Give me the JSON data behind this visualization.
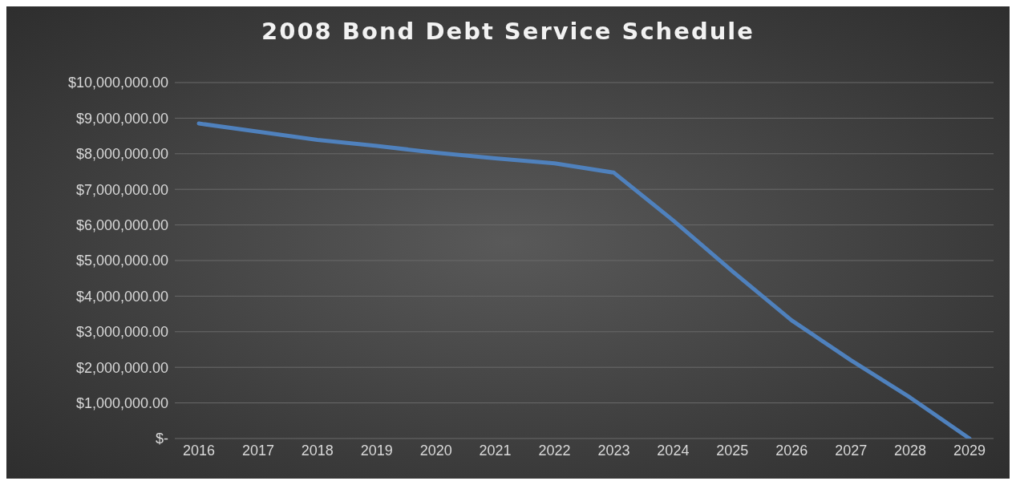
{
  "chart_data": {
    "type": "line",
    "title": "2008 Bond Debt Service Schedule",
    "categories": [
      "2016",
      "2017",
      "2018",
      "2019",
      "2020",
      "2021",
      "2022",
      "2023",
      "2024",
      "2025",
      "2026",
      "2027",
      "2028",
      "2029"
    ],
    "series": [
      {
        "color": "#4f81bd",
        "values": [
          8850000,
          8620000,
          8390000,
          8220000,
          8030000,
          7870000,
          7730000,
          7470000,
          6130000,
          4700000,
          3320000,
          2200000,
          1150000,
          0
        ]
      }
    ],
    "ylim": [
      0,
      10000000
    ],
    "yticks": [
      {
        "value": 0,
        "label": "$-"
      },
      {
        "value": 1000000,
        "label": "$1,000,000.00"
      },
      {
        "value": 2000000,
        "label": "$2,000,000.00"
      },
      {
        "value": 3000000,
        "label": "$3,000,000.00"
      },
      {
        "value": 4000000,
        "label": "$4,000,000.00"
      },
      {
        "value": 5000000,
        "label": "$5,000,000.00"
      },
      {
        "value": 6000000,
        "label": "$6,000,000.00"
      },
      {
        "value": 7000000,
        "label": "$7,000,000.00"
      },
      {
        "value": 8000000,
        "label": "$8,000,000.00"
      },
      {
        "value": 9000000,
        "label": "$9,000,000.00"
      },
      {
        "value": 10000000,
        "label": "$10,000,000.00"
      }
    ],
    "grid": "y",
    "marker": "none",
    "line_style": "solid"
  }
}
